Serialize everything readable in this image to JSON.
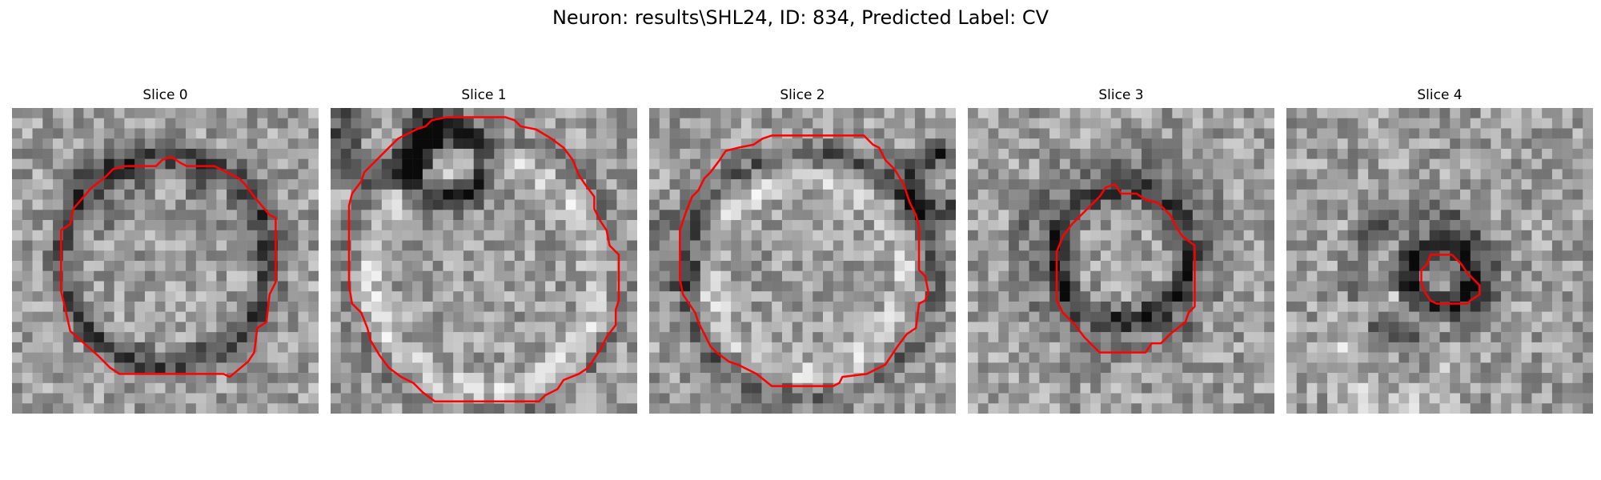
{
  "figure": {
    "title": "Neuron: results\\SHL24, ID: 834, Predicted Label: CV",
    "colormap": "gray",
    "contour_color": "#ff0000"
  },
  "panels": [
    {
      "title": "Slice 0",
      "seed": 11,
      "blobs": [
        [
          0.5,
          0.5,
          0.34,
          -0.35
        ],
        [
          0.3,
          0.25,
          0.1,
          -0.15
        ],
        [
          0.7,
          0.3,
          0.1,
          -0.12
        ]
      ],
      "contour": [
        [
          0.52,
          0.16
        ],
        [
          0.55,
          0.18
        ],
        [
          0.57,
          0.19
        ],
        [
          0.66,
          0.19
        ],
        [
          0.68,
          0.2
        ],
        [
          0.74,
          0.23
        ],
        [
          0.76,
          0.25
        ],
        [
          0.79,
          0.29
        ],
        [
          0.84,
          0.35
        ],
        [
          0.86,
          0.36
        ],
        [
          0.86,
          0.57
        ],
        [
          0.84,
          0.61
        ],
        [
          0.83,
          0.7
        ],
        [
          0.8,
          0.72
        ],
        [
          0.79,
          0.8
        ],
        [
          0.77,
          0.83
        ],
        [
          0.71,
          0.88
        ],
        [
          0.69,
          0.87
        ],
        [
          0.35,
          0.87
        ],
        [
          0.32,
          0.85
        ],
        [
          0.28,
          0.81
        ],
        [
          0.19,
          0.73
        ],
        [
          0.17,
          0.64
        ],
        [
          0.16,
          0.6
        ],
        [
          0.16,
          0.4
        ],
        [
          0.19,
          0.38
        ],
        [
          0.2,
          0.33
        ],
        [
          0.26,
          0.26
        ],
        [
          0.3,
          0.23
        ],
        [
          0.33,
          0.2
        ],
        [
          0.37,
          0.19
        ],
        [
          0.47,
          0.19
        ],
        [
          0.49,
          0.17
        ]
      ]
    },
    {
      "title": "Slice 1",
      "seed": 23,
      "blobs": [
        [
          0.5,
          0.55,
          0.44,
          -0.15
        ],
        [
          0.5,
          0.55,
          0.38,
          0.22
        ],
        [
          0.38,
          0.18,
          0.12,
          -0.5
        ],
        [
          0.18,
          0.08,
          0.14,
          -0.35
        ]
      ],
      "contour": [
        [
          0.47,
          0.03
        ],
        [
          0.57,
          0.03
        ],
        [
          0.6,
          0.04
        ],
        [
          0.62,
          0.06
        ],
        [
          0.67,
          0.07
        ],
        [
          0.72,
          0.1
        ],
        [
          0.76,
          0.13
        ],
        [
          0.79,
          0.17
        ],
        [
          0.81,
          0.22
        ],
        [
          0.83,
          0.25
        ],
        [
          0.86,
          0.29
        ],
        [
          0.86,
          0.33
        ],
        [
          0.88,
          0.37
        ],
        [
          0.9,
          0.4
        ],
        [
          0.91,
          0.45
        ],
        [
          0.94,
          0.48
        ],
        [
          0.94,
          0.63
        ],
        [
          0.93,
          0.66
        ],
        [
          0.93,
          0.71
        ],
        [
          0.9,
          0.75
        ],
        [
          0.88,
          0.79
        ],
        [
          0.86,
          0.82
        ],
        [
          0.84,
          0.85
        ],
        [
          0.81,
          0.87
        ],
        [
          0.76,
          0.89
        ],
        [
          0.74,
          0.92
        ],
        [
          0.7,
          0.94
        ],
        [
          0.68,
          0.96
        ],
        [
          0.34,
          0.96
        ],
        [
          0.3,
          0.93
        ],
        [
          0.27,
          0.9
        ],
        [
          0.23,
          0.88
        ],
        [
          0.19,
          0.85
        ],
        [
          0.16,
          0.81
        ],
        [
          0.13,
          0.76
        ],
        [
          0.12,
          0.72
        ],
        [
          0.1,
          0.67
        ],
        [
          0.07,
          0.64
        ],
        [
          0.06,
          0.58
        ],
        [
          0.06,
          0.32
        ],
        [
          0.07,
          0.28
        ],
        [
          0.1,
          0.24
        ],
        [
          0.11,
          0.21
        ],
        [
          0.16,
          0.16
        ],
        [
          0.19,
          0.13
        ],
        [
          0.22,
          0.1
        ],
        [
          0.28,
          0.07
        ],
        [
          0.31,
          0.06
        ],
        [
          0.33,
          0.04
        ],
        [
          0.38,
          0.03
        ],
        [
          0.44,
          0.03
        ]
      ]
    },
    {
      "title": "Slice 2",
      "seed": 37,
      "blobs": [
        [
          0.52,
          0.55,
          0.4,
          -0.25
        ],
        [
          0.52,
          0.55,
          0.32,
          0.2
        ],
        [
          0.95,
          0.25,
          0.1,
          -0.4
        ],
        [
          0.1,
          0.45,
          0.1,
          -0.2
        ]
      ],
      "contour": [
        [
          0.4,
          0.09
        ],
        [
          0.7,
          0.09
        ],
        [
          0.73,
          0.12
        ],
        [
          0.75,
          0.13
        ],
        [
          0.77,
          0.17
        ],
        [
          0.8,
          0.2
        ],
        [
          0.83,
          0.25
        ],
        [
          0.84,
          0.28
        ],
        [
          0.85,
          0.31
        ],
        [
          0.87,
          0.35
        ],
        [
          0.88,
          0.39
        ],
        [
          0.88,
          0.53
        ],
        [
          0.9,
          0.55
        ],
        [
          0.91,
          0.6
        ],
        [
          0.9,
          0.63
        ],
        [
          0.88,
          0.64
        ],
        [
          0.87,
          0.72
        ],
        [
          0.84,
          0.74
        ],
        [
          0.81,
          0.78
        ],
        [
          0.79,
          0.81
        ],
        [
          0.77,
          0.84
        ],
        [
          0.73,
          0.86
        ],
        [
          0.71,
          0.87
        ],
        [
          0.63,
          0.88
        ],
        [
          0.62,
          0.9
        ],
        [
          0.6,
          0.91
        ],
        [
          0.4,
          0.91
        ],
        [
          0.35,
          0.87
        ],
        [
          0.29,
          0.84
        ],
        [
          0.26,
          0.83
        ],
        [
          0.22,
          0.8
        ],
        [
          0.2,
          0.78
        ],
        [
          0.18,
          0.74
        ],
        [
          0.16,
          0.7
        ],
        [
          0.15,
          0.67
        ],
        [
          0.13,
          0.64
        ],
        [
          0.11,
          0.61
        ],
        [
          0.1,
          0.56
        ],
        [
          0.1,
          0.4
        ],
        [
          0.11,
          0.37
        ],
        [
          0.12,
          0.34
        ],
        [
          0.14,
          0.29
        ],
        [
          0.16,
          0.27
        ],
        [
          0.18,
          0.23
        ],
        [
          0.2,
          0.21
        ],
        [
          0.23,
          0.17
        ],
        [
          0.25,
          0.14
        ],
        [
          0.29,
          0.13
        ],
        [
          0.34,
          0.12
        ],
        [
          0.37,
          0.1
        ]
      ]
    },
    {
      "title": "Slice 3",
      "seed": 41,
      "blobs": [
        [
          0.5,
          0.48,
          0.22,
          -0.45
        ],
        [
          0.5,
          0.48,
          0.32,
          -0.15
        ]
      ],
      "contour": [
        [
          0.45,
          0.26
        ],
        [
          0.48,
          0.25
        ],
        [
          0.5,
          0.28
        ],
        [
          0.55,
          0.28
        ],
        [
          0.58,
          0.3
        ],
        [
          0.62,
          0.31
        ],
        [
          0.66,
          0.35
        ],
        [
          0.68,
          0.39
        ],
        [
          0.7,
          0.42
        ],
        [
          0.74,
          0.45
        ],
        [
          0.74,
          0.65
        ],
        [
          0.72,
          0.67
        ],
        [
          0.71,
          0.7
        ],
        [
          0.66,
          0.74
        ],
        [
          0.63,
          0.77
        ],
        [
          0.6,
          0.77
        ],
        [
          0.58,
          0.8
        ],
        [
          0.43,
          0.8
        ],
        [
          0.38,
          0.75
        ],
        [
          0.35,
          0.71
        ],
        [
          0.31,
          0.67
        ],
        [
          0.29,
          0.63
        ],
        [
          0.29,
          0.47
        ],
        [
          0.31,
          0.42
        ],
        [
          0.34,
          0.38
        ],
        [
          0.38,
          0.34
        ],
        [
          0.41,
          0.31
        ],
        [
          0.43,
          0.29
        ]
      ]
    },
    {
      "title": "Slice 4",
      "seed": 59,
      "blobs": [
        [
          0.5,
          0.55,
          0.1,
          -0.55
        ],
        [
          0.45,
          0.55,
          0.22,
          -0.2
        ],
        [
          0.35,
          0.8,
          0.18,
          0.15
        ]
      ],
      "contour": [
        [
          0.47,
          0.48
        ],
        [
          0.54,
          0.48
        ],
        [
          0.57,
          0.51
        ],
        [
          0.59,
          0.54
        ],
        [
          0.61,
          0.56
        ],
        [
          0.63,
          0.58
        ],
        [
          0.63,
          0.61
        ],
        [
          0.6,
          0.63
        ],
        [
          0.59,
          0.64
        ],
        [
          0.49,
          0.64
        ],
        [
          0.47,
          0.63
        ],
        [
          0.45,
          0.6
        ],
        [
          0.44,
          0.57
        ],
        [
          0.44,
          0.53
        ],
        [
          0.46,
          0.51
        ]
      ]
    }
  ]
}
